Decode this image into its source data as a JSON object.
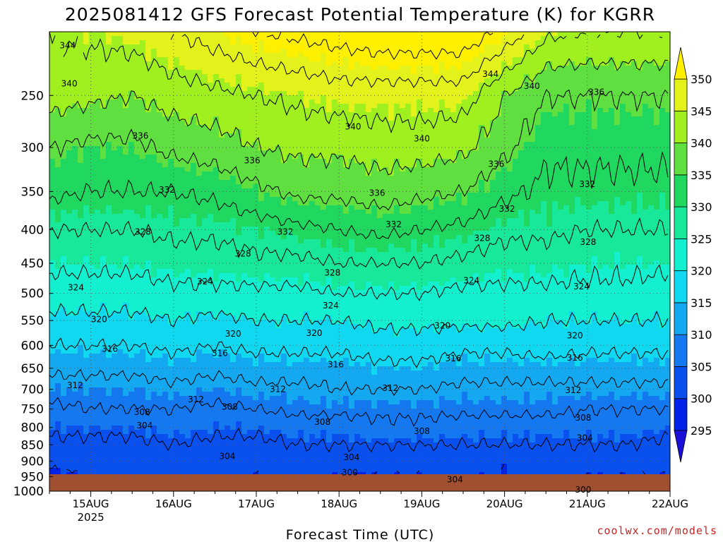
{
  "chart_data": {
    "type": "heatmap",
    "title": "2025081412 GFS Forecast Potential Temperature (K) for KGRR",
    "xlabel": "Forecast Time (UTC)",
    "ylabel": "",
    "y_scale": "log",
    "y_inverted": true,
    "y_ticks": [
      250,
      300,
      350,
      400,
      450,
      500,
      550,
      600,
      650,
      700,
      750,
      800,
      850,
      900,
      950,
      1000
    ],
    "ylim": [
      1000,
      200
    ],
    "x_ticks": [
      "15AUG",
      "16AUG",
      "17AUG",
      "18AUG",
      "19AUG",
      "20AUG",
      "21AUG",
      "22AUG"
    ],
    "x_tick_sublabel": "2025",
    "xlim_days": [
      14.5,
      22.0
    ],
    "grid": true,
    "colorbar": {
      "ticks": [
        295,
        300,
        305,
        310,
        315,
        320,
        325,
        330,
        335,
        340,
        345,
        350
      ],
      "range": [
        290,
        355
      ],
      "colors": [
        "#1a10d8",
        "#0022e8",
        "#0a50ee",
        "#1478f0",
        "#14a8f0",
        "#10d8f0",
        "#12f0d0",
        "#18e89a",
        "#20d860",
        "#60e040",
        "#a0f020",
        "#e4f21c",
        "#fff000"
      ]
    },
    "contour_interval_K": 4,
    "ground_color": "#a05030",
    "profile_pressures": [
      200,
      250,
      300,
      350,
      400,
      450,
      500,
      550,
      600,
      650,
      700,
      750,
      800,
      850,
      900,
      950,
      1000
    ],
    "profile_times": [
      "14AUG 12Z",
      "15AUG 00Z",
      "15AUG 12Z",
      "16AUG 00Z",
      "16AUG 12Z",
      "17AUG 00Z",
      "17AUG 12Z",
      "18AUG 00Z",
      "18AUG 12Z",
      "19AUG 00Z",
      "19AUG 12Z",
      "20AUG 00Z",
      "20AUG 12Z",
      "21AUG 00Z",
      "21AUG 12Z",
      "22AUG 00Z"
    ],
    "theta_K": [
      [
        344,
        342,
        336,
        333,
        328,
        325,
        322,
        319,
        316,
        313,
        310,
        307,
        305,
        303,
        301,
        299,
        298
      ],
      [
        345,
        341,
        335,
        332,
        328,
        325,
        322,
        319,
        316,
        313,
        310,
        308,
        305,
        303,
        302,
        300,
        299
      ],
      [
        346,
        340,
        335,
        332,
        328,
        325,
        322,
        319,
        316,
        313,
        310,
        308,
        305,
        303,
        302,
        301,
        300
      ],
      [
        348,
        342,
        337,
        332,
        329,
        326,
        323,
        320,
        317,
        314,
        311,
        308,
        306,
        304,
        302,
        301,
        300
      ],
      [
        350,
        343,
        338,
        333,
        329,
        326,
        323,
        319,
        316,
        313,
        310,
        307,
        305,
        303,
        302,
        301,
        299
      ],
      [
        352,
        344,
        340,
        335,
        330,
        327,
        323,
        320,
        317,
        314,
        311,
        308,
        305,
        303,
        302,
        300,
        299
      ],
      [
        353,
        345,
        341,
        337,
        331,
        327,
        323,
        320,
        317,
        314,
        311,
        309,
        306,
        304,
        302,
        301,
        299
      ],
      [
        354,
        346,
        341,
        337,
        332,
        328,
        324,
        320,
        317,
        314,
        312,
        309,
        306,
        304,
        302,
        300,
        298
      ],
      [
        355,
        346,
        342,
        338,
        333,
        328,
        324,
        321,
        318,
        315,
        312,
        309,
        307,
        304,
        302,
        300,
        298
      ],
      [
        355,
        346,
        342,
        337,
        332,
        328,
        324,
        321,
        318,
        315,
        312,
        309,
        307,
        304,
        302,
        300,
        299
      ],
      [
        355,
        346,
        341,
        336,
        331,
        327,
        323,
        321,
        317,
        314,
        311,
        309,
        306,
        304,
        302,
        301,
        299
      ],
      [
        351,
        340,
        337,
        333,
        329,
        326,
        323,
        321,
        317,
        314,
        311,
        309,
        306,
        304,
        301,
        300,
        298
      ],
      [
        345,
        336,
        333,
        331,
        329,
        326,
        323,
        320,
        318,
        314,
        311,
        309,
        306,
        304,
        302,
        301,
        299
      ],
      [
        344,
        336,
        333,
        331,
        328,
        325,
        323,
        320,
        317,
        314,
        311,
        308,
        306,
        304,
        302,
        300,
        299
      ],
      [
        344,
        336,
        333,
        331,
        328,
        325,
        323,
        320,
        317,
        314,
        311,
        308,
        306,
        304,
        302,
        300,
        299
      ],
      [
        344,
        336,
        333,
        331,
        328,
        325,
        322,
        320,
        317,
        314,
        311,
        308,
        305,
        303,
        302,
        300,
        299
      ]
    ],
    "contour_labels": [
      {
        "text": "344",
        "t": 14.72,
        "p": 210
      },
      {
        "text": "340",
        "t": 14.74,
        "p": 240
      },
      {
        "text": "336",
        "t": 15.6,
        "p": 288
      },
      {
        "text": "332",
        "t": 15.92,
        "p": 348
      },
      {
        "text": "328",
        "t": 15.63,
        "p": 403
      },
      {
        "text": "324",
        "t": 14.82,
        "p": 490
      },
      {
        "text": "320",
        "t": 15.1,
        "p": 548
      },
      {
        "text": "316",
        "t": 15.23,
        "p": 608
      },
      {
        "text": "312",
        "t": 14.81,
        "p": 690
      },
      {
        "text": "308",
        "t": 15.62,
        "p": 758
      },
      {
        "text": "304",
        "t": 15.65,
        "p": 795
      },
      {
        "text": "344",
        "t": 19.83,
        "p": 232
      },
      {
        "text": "340",
        "t": 20.33,
        "p": 242
      },
      {
        "text": "336",
        "t": 21.11,
        "p": 247
      },
      {
        "text": "340",
        "t": 18.17,
        "p": 279
      },
      {
        "text": "340",
        "t": 19.0,
        "p": 291
      },
      {
        "text": "336",
        "t": 16.95,
        "p": 314
      },
      {
        "text": "336",
        "t": 19.9,
        "p": 318
      },
      {
        "text": "336",
        "t": 18.46,
        "p": 352
      },
      {
        "text": "332",
        "t": 20.03,
        "p": 372
      },
      {
        "text": "332",
        "t": 21.0,
        "p": 341
      },
      {
        "text": "332",
        "t": 18.66,
        "p": 393
      },
      {
        "text": "332",
        "t": 17.35,
        "p": 403
      },
      {
        "text": "328",
        "t": 16.84,
        "p": 435
      },
      {
        "text": "328",
        "t": 17.92,
        "p": 465
      },
      {
        "text": "328",
        "t": 19.73,
        "p": 412
      },
      {
        "text": "328",
        "t": 21.01,
        "p": 418
      },
      {
        "text": "324",
        "t": 16.38,
        "p": 480
      },
      {
        "text": "324",
        "t": 19.6,
        "p": 478
      },
      {
        "text": "324",
        "t": 20.93,
        "p": 488
      },
      {
        "text": "324",
        "t": 17.9,
        "p": 522
      },
      {
        "text": "320",
        "t": 16.72,
        "p": 576
      },
      {
        "text": "320",
        "t": 17.7,
        "p": 575
      },
      {
        "text": "320",
        "t": 19.25,
        "p": 560
      },
      {
        "text": "320",
        "t": 20.85,
        "p": 580
      },
      {
        "text": "316",
        "t": 16.56,
        "p": 617
      },
      {
        "text": "316",
        "t": 17.96,
        "p": 642
      },
      {
        "text": "316",
        "t": 19.38,
        "p": 628
      },
      {
        "text": "316",
        "t": 20.85,
        "p": 627
      },
      {
        "text": "312",
        "t": 16.27,
        "p": 725
      },
      {
        "text": "312",
        "t": 17.26,
        "p": 700
      },
      {
        "text": "312",
        "t": 18.62,
        "p": 697
      },
      {
        "text": "312",
        "t": 20.83,
        "p": 702
      },
      {
        "text": "308",
        "t": 16.68,
        "p": 744
      },
      {
        "text": "308",
        "t": 17.8,
        "p": 785
      },
      {
        "text": "308",
        "t": 19.0,
        "p": 810
      },
      {
        "text": "308",
        "t": 20.95,
        "p": 773
      },
      {
        "text": "304",
        "t": 16.65,
        "p": 885
      },
      {
        "text": "304",
        "t": 18.15,
        "p": 888
      },
      {
        "text": "304",
        "t": 19.4,
        "p": 960
      },
      {
        "text": "304",
        "t": 20.97,
        "p": 830
      },
      {
        "text": "300",
        "t": 18.13,
        "p": 937
      },
      {
        "text": "300",
        "t": 20.95,
        "p": 995
      }
    ]
  },
  "credit": "coolwx.com/models"
}
